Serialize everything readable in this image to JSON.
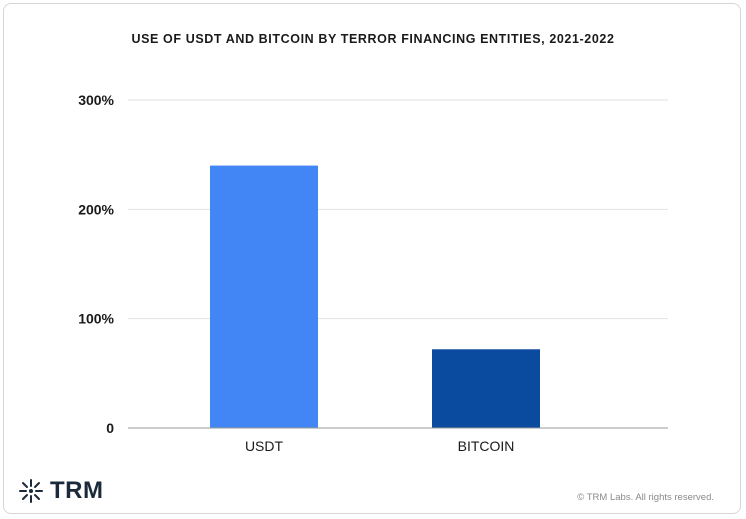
{
  "chart_data": {
    "type": "bar",
    "title": "USE OF USDT AND BITCOIN BY TERROR FINANCING ENTITIES, 2021-2022",
    "categories": [
      "USDT",
      "BITCOIN"
    ],
    "values": [
      240,
      72
    ],
    "colors": [
      "#4285f4",
      "#0a4a9f"
    ],
    "yticks": [
      0,
      100,
      200,
      300
    ],
    "ytick_labels": [
      "0",
      "100%",
      "200%",
      "300%"
    ],
    "ylim": [
      0,
      300
    ],
    "grid": true,
    "xlabel": "",
    "ylabel": ""
  },
  "branding": {
    "logo_text": "TRM",
    "logo_icon": "snowflake-burst-icon",
    "copyright": "© TRM Labs. All rights reserved."
  }
}
